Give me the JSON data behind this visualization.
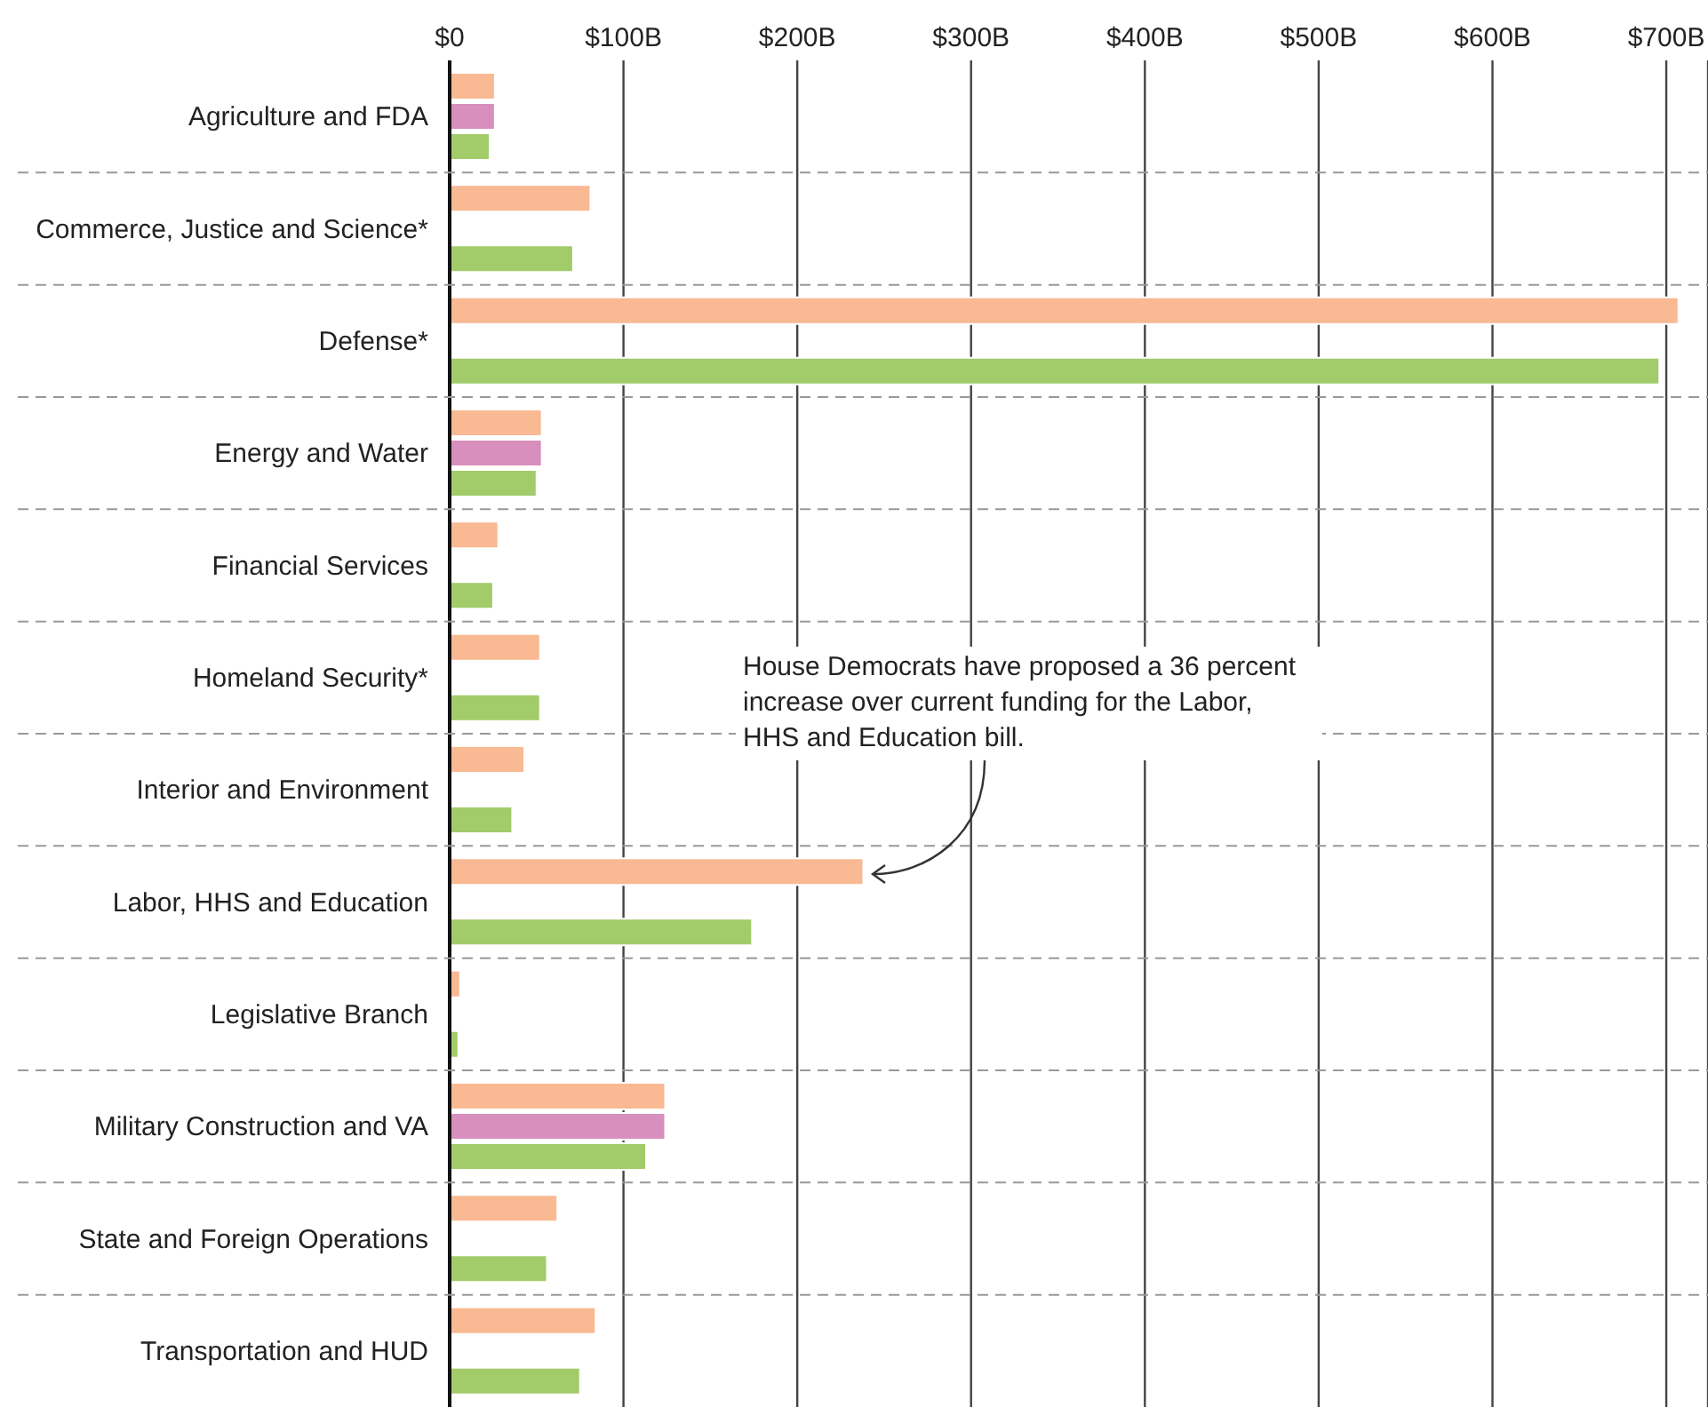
{
  "chart_data": {
    "type": "bar",
    "orientation": "horizontal",
    "categories": [
      "Agriculture and FDA",
      "Commerce, Justice and Science*",
      "Defense*",
      "Energy and Water",
      "Financial Services",
      "Homeland Security*",
      "Interior and Environment",
      "Labor, HHS and Education",
      "Legislative Branch",
      "Military Construction and VA",
      "State and Foreign Operations",
      "Transportation and HUD"
    ],
    "series": [
      {
        "color": "#f9b993",
        "values": [
          26,
          81,
          707,
          53,
          28,
          52,
          43,
          238,
          6,
          124,
          62,
          84
        ]
      },
      {
        "color": "#d88fbd",
        "values": [
          26,
          null,
          null,
          53,
          null,
          null,
          null,
          null,
          null,
          124,
          null,
          null
        ]
      },
      {
        "color": "#a2cb6a",
        "values": [
          23,
          71,
          696,
          50,
          25,
          52,
          36,
          174,
          5,
          113,
          56,
          75
        ]
      }
    ],
    "xlim": [
      0,
      724
    ],
    "xticks": [
      {
        "value": 0,
        "label": "$0"
      },
      {
        "value": 100,
        "label": "$100B"
      },
      {
        "value": 200,
        "label": "$200B"
      },
      {
        "value": 300,
        "label": "$300B"
      },
      {
        "value": 400,
        "label": "$400B"
      },
      {
        "value": 500,
        "label": "$500B"
      },
      {
        "value": 600,
        "label": "$600B"
      },
      {
        "value": 700,
        "label": "$700B"
      }
    ],
    "grid": "x",
    "annotations": [
      "House Democrats have proposed a 36 percent increase over current funding for the Labor, HHS and Education bill."
    ]
  }
}
